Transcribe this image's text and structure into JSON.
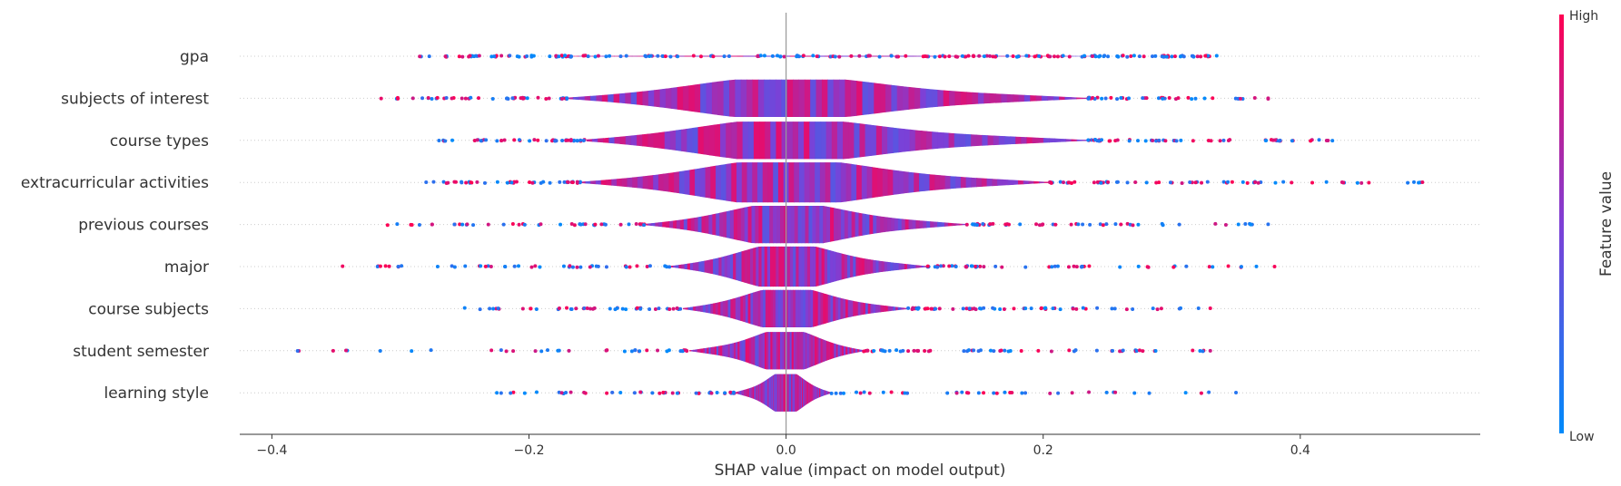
{
  "chart_data": {
    "type": "violin",
    "plot_kind": "SHAP summary (layered violin)",
    "xlabel": "SHAP value (impact on model output)",
    "xlim": [
      -0.425,
      0.54
    ],
    "xticks": [
      -0.4,
      -0.2,
      0.0,
      0.2,
      0.4
    ],
    "xtick_labels": [
      "−0.4",
      "−0.2",
      "0.0",
      "0.2",
      "0.4"
    ],
    "grid": "horizontal dotted row guides",
    "zero_line": 0.0,
    "colorbar": {
      "title": "Feature value",
      "high_label": "High",
      "low_label": "Low",
      "high_color": "#ff0052",
      "low_color": "#008bfb"
    },
    "features": [
      {
        "name": "gpa",
        "core_min": -0.17,
        "core_max": 0.24,
        "max_width": 0.005,
        "tail_min": -0.285,
        "tail_max": 0.335
      },
      {
        "name": "subjects of interest",
        "core_min": -0.17,
        "core_max": 0.235,
        "max_width": 0.42,
        "tail_min": -0.315,
        "tail_max": 0.375
      },
      {
        "name": "course types",
        "core_min": -0.155,
        "core_max": 0.235,
        "max_width": 0.42,
        "tail_min": -0.27,
        "tail_max": 0.425
      },
      {
        "name": "extracurricular activities",
        "core_min": -0.16,
        "core_max": 0.205,
        "max_width": 0.45,
        "tail_min": -0.28,
        "tail_max": 0.495
      },
      {
        "name": "previous courses",
        "core_min": -0.11,
        "core_max": 0.14,
        "max_width": 0.42,
        "tail_min": -0.31,
        "tail_max": 0.375
      },
      {
        "name": "major",
        "core_min": -0.09,
        "core_max": 0.11,
        "max_width": 0.45,
        "tail_min": -0.345,
        "tail_max": 0.38
      },
      {
        "name": "course subjects",
        "core_min": -0.08,
        "core_max": 0.095,
        "max_width": 0.42,
        "tail_min": -0.25,
        "tail_max": 0.33
      },
      {
        "name": "student semester",
        "core_min": -0.075,
        "core_max": 0.06,
        "max_width": 0.42,
        "tail_min": -0.38,
        "tail_max": 0.33
      },
      {
        "name": "learning style",
        "core_min": -0.04,
        "core_max": 0.035,
        "max_width": 0.42,
        "tail_min": -0.225,
        "tail_max": 0.35
      }
    ]
  }
}
